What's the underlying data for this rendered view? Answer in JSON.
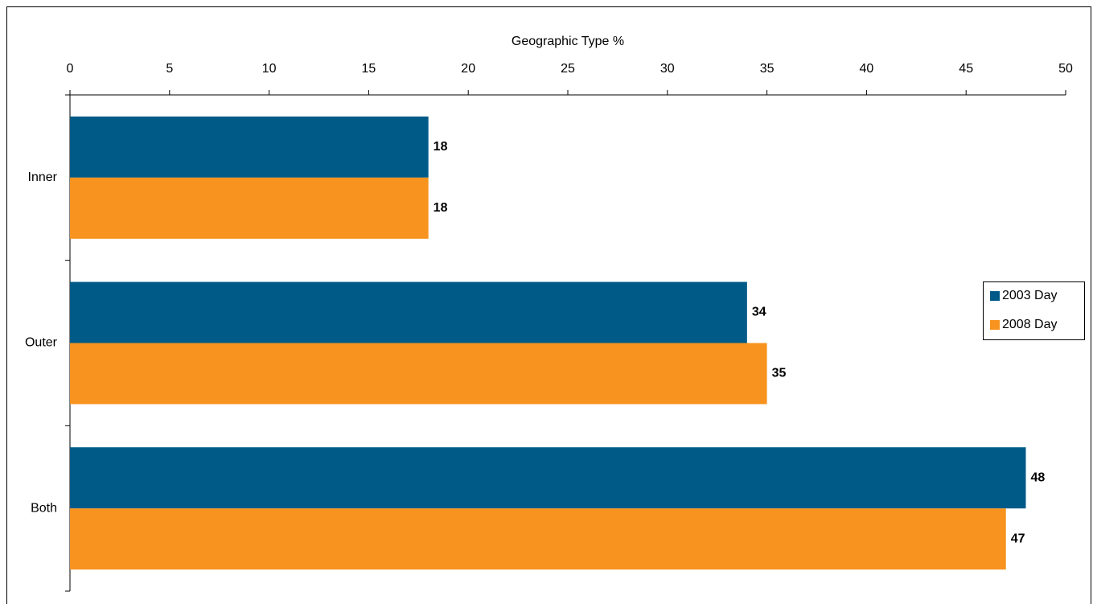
{
  "chart_data": {
    "type": "hbar",
    "x_label": "Geographic Type %",
    "categories": [
      "Inner",
      "Outer",
      "Both"
    ],
    "series": [
      {
        "name": "2003 Day",
        "color": "#005a87",
        "values": [
          18,
          34,
          48
        ]
      },
      {
        "name": "2008 Day",
        "color": "#f7931e",
        "values": [
          18,
          35,
          47
        ]
      }
    ],
    "xlim": [
      0,
      50
    ],
    "xticks": [
      0,
      5,
      10,
      15,
      20,
      25,
      30,
      35,
      40,
      45,
      50
    ],
    "legend": "right"
  }
}
